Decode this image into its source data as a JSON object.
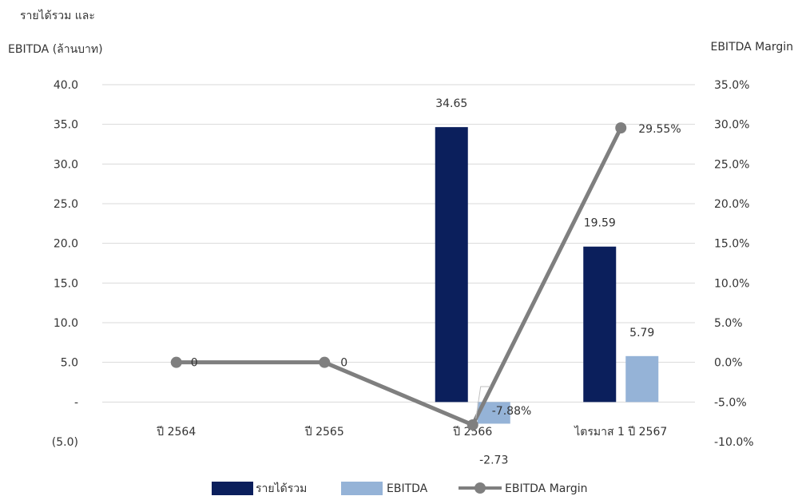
{
  "chart_data": {
    "type": "bar",
    "title": "",
    "ylabel_line1": "รายได้รวม และ",
    "ylabel_line2": "EBITDA (ล้านบาท)",
    "y2label": "EBITDA Margin",
    "categories": [
      "ปี 2564",
      "ปี 2565",
      "ปี 2566",
      "ไตรมาส 1 ปี 2567"
    ],
    "ylim": [
      -5,
      40
    ],
    "y2lim": [
      -0.1,
      0.35
    ],
    "yticks": [
      -5,
      0,
      5,
      10,
      15,
      20,
      25,
      30,
      35,
      40
    ],
    "ytick_labels": [
      "(5.0)",
      "-",
      "5.0",
      "10.0",
      "15.0",
      "20.0",
      "25.0",
      "30.0",
      "35.0",
      "40.0"
    ],
    "y2ticks": [
      -0.1,
      -0.05,
      0.0,
      0.05,
      0.1,
      0.15,
      0.2,
      0.25,
      0.3,
      0.35
    ],
    "y2tick_labels": [
      "-10.0%",
      "-5.0%",
      "0.0%",
      "5.0%",
      "10.0%",
      "15.0%",
      "20.0%",
      "25.0%",
      "30.0%",
      "35.0%"
    ],
    "grid": true,
    "legend_position": "bottom",
    "series": [
      {
        "name": "รายได้รวม",
        "type": "bar",
        "axis": "left",
        "color": "#0b1f5c",
        "values": [
          null,
          null,
          34.65,
          19.59
        ],
        "labels": [
          "",
          "",
          "34.65",
          "19.59"
        ]
      },
      {
        "name": "EBITDA",
        "type": "bar",
        "axis": "left",
        "color": "#95b3d7",
        "values": [
          null,
          null,
          -2.73,
          5.79
        ],
        "labels": [
          "",
          "",
          "-2.73",
          "5.79"
        ]
      },
      {
        "name": "EBITDA Margin",
        "type": "line",
        "axis": "right",
        "color": "#7f7f7f",
        "values": [
          0.0,
          0.0,
          -0.0788,
          0.2955
        ],
        "labels": [
          "0",
          "0",
          "-7.88%",
          "29.55%"
        ]
      }
    ]
  }
}
